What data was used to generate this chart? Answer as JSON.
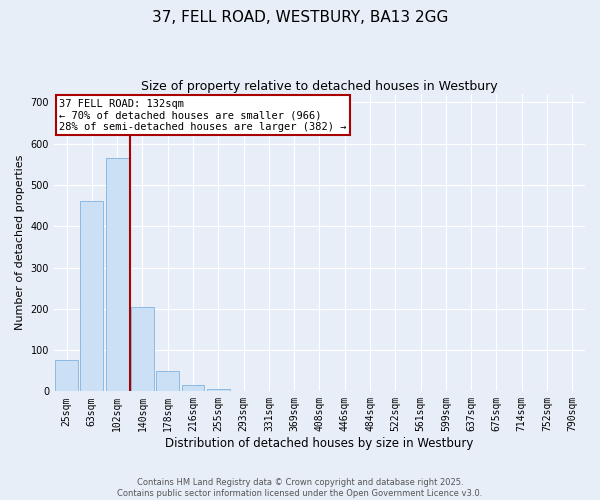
{
  "title": "37, FELL ROAD, WESTBURY, BA13 2GG",
  "subtitle": "Size of property relative to detached houses in Westbury",
  "xlabel": "Distribution of detached houses by size in Westbury",
  "ylabel": "Number of detached properties",
  "bar_color": "#cce0f5",
  "bar_edge_color": "#7fb3e0",
  "background_color": "#e8eef8",
  "grid_color": "#ffffff",
  "categories": [
    "25sqm",
    "63sqm",
    "102sqm",
    "140sqm",
    "178sqm",
    "216sqm",
    "255sqm",
    "293sqm",
    "331sqm",
    "369sqm",
    "408sqm",
    "446sqm",
    "484sqm",
    "522sqm",
    "561sqm",
    "599sqm",
    "637sqm",
    "675sqm",
    "714sqm",
    "752sqm",
    "790sqm"
  ],
  "values": [
    75,
    460,
    565,
    205,
    50,
    15,
    5,
    1,
    0,
    0,
    0,
    0,
    0,
    0,
    0,
    0,
    0,
    0,
    0,
    0,
    0
  ],
  "ylim": [
    0,
    720
  ],
  "yticks": [
    0,
    100,
    200,
    300,
    400,
    500,
    600,
    700
  ],
  "property_bin_index": 3,
  "annotation_line1": "37 FELL ROAD: 132sqm",
  "annotation_line2": "← 70% of detached houses are smaller (966)",
  "annotation_line3": "28% of semi-detached houses are larger (382) →",
  "annotation_box_color": "#aa0000",
  "vline_color": "#aa0000",
  "footer1": "Contains HM Land Registry data © Crown copyright and database right 2025.",
  "footer2": "Contains public sector information licensed under the Open Government Licence v3.0.",
  "title_fontsize": 11,
  "subtitle_fontsize": 9,
  "xlabel_fontsize": 8.5,
  "ylabel_fontsize": 8,
  "tick_fontsize": 7,
  "annotation_fontsize": 7.5,
  "footer_fontsize": 6
}
